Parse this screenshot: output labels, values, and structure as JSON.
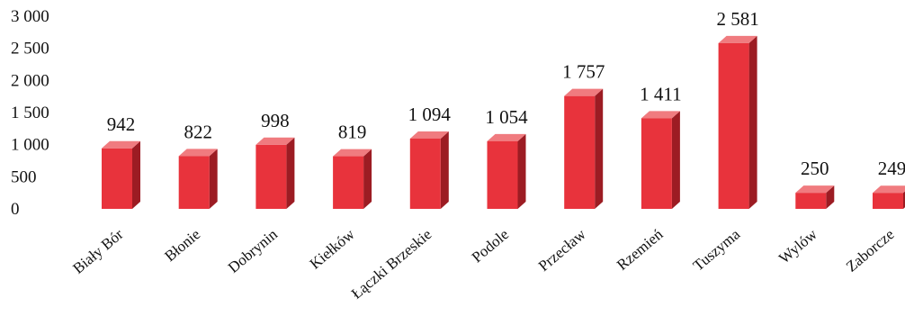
{
  "chart_data": {
    "type": "bar",
    "title": "",
    "xlabel": "",
    "ylabel": "",
    "ylim": [
      0,
      3000
    ],
    "y_ticks": [
      {
        "value": 0,
        "label": "0"
      },
      {
        "value": 500,
        "label": "500"
      },
      {
        "value": 1000,
        "label": "1 000"
      },
      {
        "value": 1500,
        "label": "1 500"
      },
      {
        "value": 2000,
        "label": "2 000"
      },
      {
        "value": 2500,
        "label": "2 500"
      },
      {
        "value": 3000,
        "label": "3 000"
      }
    ],
    "grid": false,
    "legend": "none",
    "bar_style": "3d",
    "colors": {
      "front": "#e8333c",
      "top": "#f07b7f",
      "side": "#9c1c23"
    },
    "categories": [
      "Biały Bór",
      "Błonie",
      "Dobrynin",
      "Kiełków",
      "Łączki Brzeskie",
      "Podole",
      "Przecław",
      "Rzemień",
      "Tuszyma",
      "Wylów",
      "Zaborcze"
    ],
    "values": [
      942,
      822,
      998,
      819,
      1094,
      1054,
      1757,
      1411,
      2581,
      250,
      249
    ],
    "value_labels": [
      "942",
      "822",
      "998",
      "819",
      "1 094",
      "1 054",
      "1 757",
      "1 411",
      "2 581",
      "250",
      "249"
    ]
  }
}
